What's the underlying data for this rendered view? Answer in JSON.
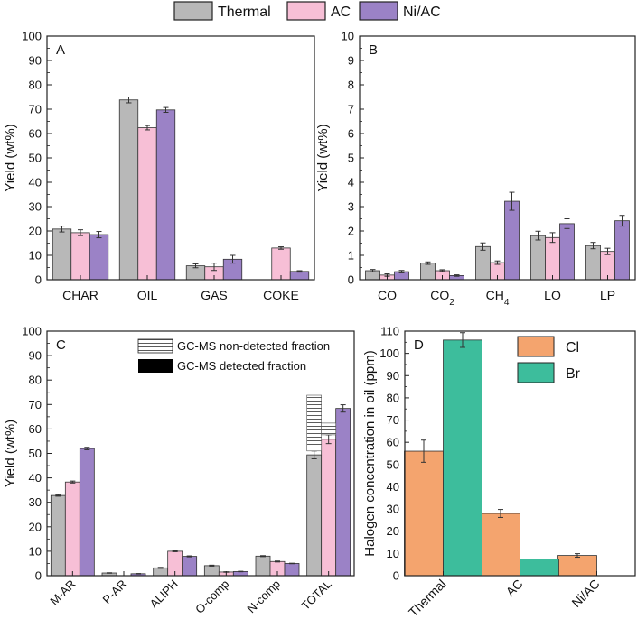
{
  "legend": [
    {
      "name": "Thermal",
      "color": "#b8b8b8"
    },
    {
      "name": "AC",
      "color": "#f7bfd6"
    },
    {
      "name": "Ni/AC",
      "color": "#9b82c6"
    }
  ],
  "chart_data": [
    {
      "id": "A",
      "type": "bar",
      "panel_label": "A",
      "ylabel": "Yield (wt%)",
      "ylim": [
        0,
        100
      ],
      "yticks": [
        "0",
        "10",
        "20",
        "30",
        "40",
        "50",
        "60",
        "70",
        "80",
        "90",
        "100"
      ],
      "categories": [
        "CHAR",
        "OIL",
        "GAS",
        "COKE"
      ],
      "series": [
        {
          "name": "Thermal",
          "values": [
            20.8,
            73.8,
            5.7,
            null
          ],
          "errors": [
            1.2,
            1.2,
            0.8,
            null
          ]
        },
        {
          "name": "AC",
          "values": [
            19.3,
            62.4,
            5.3,
            13.0
          ],
          "errors": [
            1.2,
            0.9,
            1.5,
            0.5
          ]
        },
        {
          "name": "Ni/AC",
          "values": [
            18.5,
            69.7,
            8.4,
            3.4
          ],
          "errors": [
            1.3,
            1.0,
            1.6,
            0.3
          ]
        }
      ]
    },
    {
      "id": "B",
      "type": "bar",
      "panel_label": "B",
      "ylabel": "Yield (wt%)",
      "ylim": [
        0,
        10
      ],
      "yticks": [
        "0",
        "1",
        "2",
        "3",
        "4",
        "5",
        "6",
        "7",
        "8",
        "9",
        "10"
      ],
      "categories": [
        "CO",
        "CO2",
        "CH4",
        "LO",
        "LP"
      ],
      "series": [
        {
          "name": "Thermal",
          "values": [
            0.37,
            0.68,
            1.36,
            1.81,
            1.4
          ],
          "errors": [
            0.05,
            0.05,
            0.15,
            0.18,
            0.13
          ]
        },
        {
          "name": "AC",
          "values": [
            0.19,
            0.37,
            0.7,
            1.73,
            1.16
          ],
          "errors": [
            0.05,
            0.04,
            0.07,
            0.2,
            0.13
          ]
        },
        {
          "name": "Ni/AC",
          "values": [
            0.33,
            0.17,
            3.22,
            2.3,
            2.42
          ],
          "errors": [
            0.05,
            0.03,
            0.37,
            0.2,
            0.22
          ]
        }
      ]
    },
    {
      "id": "C",
      "type": "bar",
      "panel_label": "C",
      "ylabel": "Yield (wt%)",
      "ylim": [
        0,
        100
      ],
      "yticks": [
        "0",
        "10",
        "20",
        "30",
        "40",
        "50",
        "60",
        "70",
        "80",
        "90",
        "100"
      ],
      "categories": [
        "M-AR",
        "P-AR",
        "ALIPH",
        "O-comp",
        "N-comp",
        "TOTAL"
      ],
      "series": [
        {
          "name": "Thermal",
          "values": [
            32.8,
            1.1,
            3.2,
            4.1,
            8.0,
            49.4
          ],
          "errors": [
            0.3,
            0.1,
            0.2,
            0.2,
            0.2,
            1.6
          ]
        },
        {
          "name": "AC",
          "values": [
            38.3,
            0,
            10.0,
            1.5,
            5.8,
            55.8
          ],
          "errors": [
            0.4,
            0,
            0.2,
            0.1,
            0.2,
            1.8
          ]
        },
        {
          "name": "Ni/AC",
          "values": [
            52.0,
            0.8,
            7.9,
            1.7,
            5.0,
            68.4
          ],
          "errors": [
            0.5,
            0.1,
            0.2,
            0.1,
            0.1,
            1.5
          ]
        }
      ],
      "non_detected_total": [
        73.8,
        62.4,
        69.7
      ],
      "legend": [
        "GC-MS non-detected fraction",
        "GC-MS detected fraction"
      ]
    },
    {
      "id": "D",
      "type": "bar",
      "panel_label": "D",
      "ylabel": "Halogen concentration in oil (ppm)",
      "ylim": [
        0,
        110
      ],
      "yticks": [
        "0",
        "10",
        "20",
        "30",
        "40",
        "50",
        "60",
        "70",
        "80",
        "90",
        "100",
        "110"
      ],
      "categories": [
        "Thermal",
        "AC",
        "Ni/AC"
      ],
      "series": [
        {
          "name": "Cl",
          "color": "#f4a46e",
          "values": [
            56,
            28,
            9.1
          ],
          "errors": [
            5,
            1.8,
            0.8
          ]
        },
        {
          "name": "Br",
          "color": "#3dbd9c",
          "values": [
            106,
            7.5,
            0
          ],
          "errors": [
            3.3,
            0,
            0
          ]
        }
      ]
    }
  ]
}
